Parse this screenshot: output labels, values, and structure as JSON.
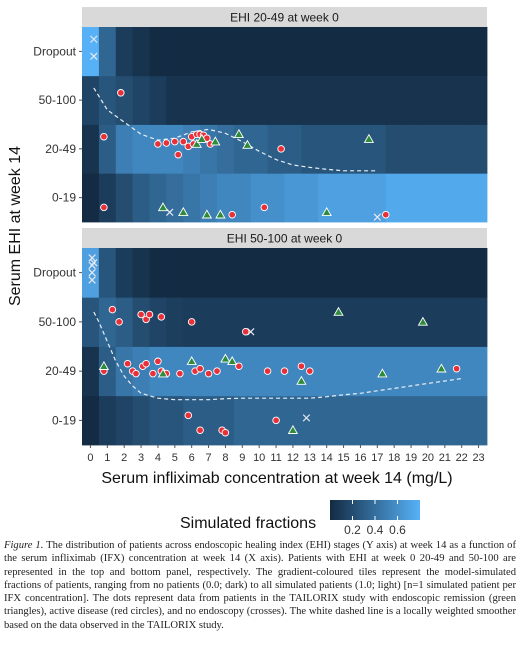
{
  "chart_data": {
    "type": "heatmap",
    "panels": [
      {
        "title": "EHI 20-49 at week 0",
        "tiles": {
          "0-19": [
            0.0,
            0.1,
            0.2,
            0.3,
            0.35,
            0.4,
            0.45,
            0.5,
            0.55,
            0.55,
            0.6,
            0.6,
            0.65,
            0.65,
            0.7,
            0.7,
            0.7,
            0.7,
            0.75,
            0.75,
            0.75,
            0.75,
            0.75,
            0.75
          ],
          "20-49": [
            0.05,
            0.3,
            0.5,
            0.55,
            0.55,
            0.55,
            0.5,
            0.45,
            0.4,
            0.35,
            0.35,
            0.3,
            0.3,
            0.25,
            0.25,
            0.25,
            0.25,
            0.25,
            0.2,
            0.2,
            0.2,
            0.2,
            0.2,
            0.2
          ],
          "50-100": [
            0.15,
            0.25,
            0.2,
            0.15,
            0.1,
            0.05,
            0.05,
            0.05,
            0.05,
            0.05,
            0.05,
            0.05,
            0.05,
            0.05,
            0.05,
            0.05,
            0.05,
            0.05,
            0.05,
            0.05,
            0.05,
            0.05,
            0.05,
            0.05
          ],
          "Dropout": [
            0.8,
            0.35,
            0.1,
            0.05,
            0.0,
            0.0,
            0.0,
            0.0,
            0.0,
            0.0,
            0.0,
            0.0,
            0.0,
            0.0,
            0.0,
            0.0,
            0.0,
            0.0,
            0.0,
            0.0,
            0.0,
            0.0,
            0.0,
            0.0
          ]
        },
        "remission": [
          [
            4.3,
            "0-19",
            -0.2
          ],
          [
            5.5,
            "0-19",
            -0.3
          ],
          [
            6.3,
            "20-49",
            0.1
          ],
          [
            6.6,
            "20-49",
            0.2
          ],
          [
            6.9,
            "0-19",
            -0.35
          ],
          [
            7.4,
            "20-49",
            0.15
          ],
          [
            7.7,
            "0-19",
            -0.35
          ],
          [
            8.8,
            "20-49",
            0.3
          ],
          [
            9.3,
            "20-49",
            0.08
          ],
          [
            14.0,
            "0-19",
            -0.3
          ],
          [
            16.5,
            "20-49",
            0.2
          ]
        ],
        "active": [
          [
            0.8,
            "0-19",
            -0.2
          ],
          [
            0.8,
            "20-49",
            0.25
          ],
          [
            1.8,
            "50-100",
            0.15
          ],
          [
            4.0,
            "20-49",
            0.1
          ],
          [
            4.5,
            "20-49",
            0.12
          ],
          [
            5.0,
            "20-49",
            0.15
          ],
          [
            5.2,
            "20-49",
            -0.12
          ],
          [
            5.5,
            "20-49",
            0.15
          ],
          [
            5.8,
            "20-49",
            0.05
          ],
          [
            6.0,
            "20-49",
            0.25
          ],
          [
            6.1,
            "20-49",
            0.1
          ],
          [
            6.3,
            "20-49",
            0.3
          ],
          [
            6.5,
            "20-49",
            0.3
          ],
          [
            6.7,
            "20-49",
            0.28
          ],
          [
            6.9,
            "20-49",
            0.22
          ],
          [
            7.1,
            "20-49",
            0.1
          ],
          [
            8.4,
            "0-19",
            -0.35
          ],
          [
            10.3,
            "0-19",
            -0.2
          ],
          [
            11.3,
            "20-49",
            0.0
          ],
          [
            17.5,
            "0-19",
            -0.35
          ]
        ],
        "no_endoscopy": [
          [
            0.2,
            "Dropout",
            0.25
          ],
          [
            0.2,
            "Dropout",
            -0.1
          ],
          [
            4.7,
            "0-19",
            -0.3
          ],
          [
            17.0,
            "0-19",
            -0.4
          ]
        ],
        "smoother": [
          [
            0.2,
            0.25
          ],
          [
            1.0,
            -0.2
          ],
          [
            2.0,
            -0.45
          ],
          [
            3.0,
            -0.7
          ],
          [
            4.0,
            -0.82
          ],
          [
            5.0,
            -0.78
          ],
          [
            6.0,
            -0.65
          ],
          [
            7.0,
            -0.6
          ],
          [
            8.0,
            -0.68
          ],
          [
            9.0,
            -0.85
          ],
          [
            10.0,
            -1.05
          ],
          [
            11.0,
            -1.22
          ],
          [
            12.0,
            -1.33
          ],
          [
            13.0,
            -1.38
          ],
          [
            14.0,
            -1.42
          ],
          [
            15.0,
            -1.45
          ],
          [
            16.0,
            -1.45
          ],
          [
            17.0,
            -1.45
          ]
        ]
      },
      {
        "title": "EHI 50-100 at week 0",
        "tiles": {
          "0-19": [
            0.0,
            0.1,
            0.15,
            0.2,
            0.25,
            0.25,
            0.3,
            0.3,
            0.3,
            0.35,
            0.35,
            0.35,
            0.35,
            0.35,
            0.35,
            0.35,
            0.35,
            0.35,
            0.35,
            0.35,
            0.35,
            0.35,
            0.35,
            0.35
          ],
          "20-49": [
            0.05,
            0.3,
            0.45,
            0.5,
            0.55,
            0.55,
            0.55,
            0.55,
            0.55,
            0.55,
            0.55,
            0.55,
            0.55,
            0.55,
            0.55,
            0.55,
            0.55,
            0.55,
            0.55,
            0.55,
            0.55,
            0.55,
            0.55,
            0.55
          ],
          "50-100": [
            0.25,
            0.35,
            0.3,
            0.2,
            0.15,
            0.12,
            0.1,
            0.1,
            0.1,
            0.1,
            0.1,
            0.1,
            0.1,
            0.1,
            0.1,
            0.1,
            0.1,
            0.1,
            0.1,
            0.1,
            0.1,
            0.1,
            0.1,
            0.1
          ],
          "Dropout": [
            0.7,
            0.25,
            0.1,
            0.05,
            0.0,
            0.0,
            0.0,
            0.0,
            0.0,
            0.0,
            0.0,
            0.0,
            0.0,
            0.0,
            0.0,
            0.0,
            0.0,
            0.0,
            0.0,
            0.0,
            0.0,
            0.0,
            0.0,
            0.0
          ]
        },
        "remission": [
          [
            0.8,
            "20-49",
            0.1
          ],
          [
            4.3,
            "20-49",
            -0.05
          ],
          [
            6.0,
            "20-49",
            0.2
          ],
          [
            8.0,
            "20-49",
            0.25
          ],
          [
            8.4,
            "20-49",
            0.2
          ],
          [
            12.0,
            "0-19",
            -0.2
          ],
          [
            12.5,
            "20-49",
            -0.2
          ],
          [
            14.7,
            "50-100",
            0.2
          ],
          [
            17.3,
            "20-49",
            -0.05
          ],
          [
            19.7,
            "50-100",
            0.0
          ],
          [
            20.8,
            "20-49",
            0.05
          ]
        ],
        "active": [
          [
            0.8,
            "20-49",
            0.0
          ],
          [
            1.3,
            "50-100",
            0.25
          ],
          [
            1.7,
            "50-100",
            0.0
          ],
          [
            2.2,
            "20-49",
            0.15
          ],
          [
            2.5,
            "20-49",
            0.0
          ],
          [
            2.7,
            "20-49",
            -0.05
          ],
          [
            3.0,
            "50-100",
            0.15
          ],
          [
            3.1,
            "20-49",
            0.1
          ],
          [
            3.3,
            "20-49",
            0.15
          ],
          [
            3.3,
            "50-100",
            0.05
          ],
          [
            3.5,
            "50-100",
            0.15
          ],
          [
            3.7,
            "20-49",
            -0.05
          ],
          [
            4.0,
            "20-49",
            0.2
          ],
          [
            4.2,
            "50-100",
            0.1
          ],
          [
            4.2,
            "20-49",
            0.0
          ],
          [
            4.5,
            "20-49",
            -0.05
          ],
          [
            5.3,
            "20-49",
            -0.05
          ],
          [
            5.8,
            "0-19",
            0.1
          ],
          [
            6.0,
            "50-100",
            0.0
          ],
          [
            6.2,
            "20-49",
            0.0
          ],
          [
            6.5,
            "0-19",
            -0.2
          ],
          [
            6.5,
            "20-49",
            0.05
          ],
          [
            7.0,
            "20-49",
            -0.05
          ],
          [
            7.5,
            "20-49",
            0.0
          ],
          [
            7.8,
            "0-19",
            -0.2
          ],
          [
            8.0,
            "0-19",
            -0.25
          ],
          [
            8.8,
            "20-49",
            0.1
          ],
          [
            9.2,
            "50-100",
            -0.2
          ],
          [
            10.5,
            "20-49",
            0.0
          ],
          [
            11.0,
            "0-19",
            0.0
          ],
          [
            11.5,
            "20-49",
            0.0
          ],
          [
            12.5,
            "20-49",
            0.1
          ],
          [
            13.0,
            "20-49",
            0.0
          ],
          [
            21.7,
            "20-49",
            0.05
          ]
        ],
        "no_endoscopy": [
          [
            0.1,
            "Dropout",
            0.3
          ],
          [
            0.1,
            "Dropout",
            0.15
          ],
          [
            0.1,
            "Dropout",
            0.0
          ],
          [
            0.1,
            "Dropout",
            -0.15
          ],
          [
            0.2,
            "Dropout",
            0.2
          ],
          [
            9.5,
            "50-100",
            -0.2
          ],
          [
            12.8,
            "0-19",
            0.05
          ]
        ],
        "smoother": [
          [
            0.2,
            0.2
          ],
          [
            0.5,
            0.0
          ],
          [
            1.0,
            -0.4
          ],
          [
            1.5,
            -0.8
          ],
          [
            2.0,
            -1.1
          ],
          [
            2.5,
            -1.3
          ],
          [
            3.0,
            -1.45
          ],
          [
            4.0,
            -1.55
          ],
          [
            5.0,
            -1.58
          ],
          [
            6.0,
            -1.58
          ],
          [
            7.0,
            -1.58
          ],
          [
            8.0,
            -1.56
          ],
          [
            9.0,
            -1.55
          ],
          [
            10.0,
            -1.55
          ],
          [
            11.0,
            -1.55
          ],
          [
            12.0,
            -1.55
          ],
          [
            13.0,
            -1.55
          ],
          [
            14.0,
            -1.52
          ],
          [
            15.0,
            -1.48
          ],
          [
            16.0,
            -1.45
          ],
          [
            17.0,
            -1.4
          ],
          [
            18.0,
            -1.35
          ],
          [
            19.0,
            -1.3
          ],
          [
            20.0,
            -1.25
          ],
          [
            21.0,
            -1.2
          ],
          [
            22.0,
            -1.15
          ]
        ]
      }
    ],
    "y_categories": [
      "0-19",
      "20-49",
      "50-100",
      "Dropout"
    ],
    "x_ticks": [
      0,
      1,
      2,
      3,
      4,
      5,
      6,
      7,
      8,
      9,
      10,
      11,
      12,
      13,
      14,
      15,
      16,
      17,
      18,
      19,
      20,
      21,
      22,
      23
    ],
    "xlim": [
      -0.5,
      23.5
    ],
    "xlabel": "Serum infliximab concentration at week 14 (mg/L)",
    "ylabel": "Serum EHI at week 14",
    "legend": {
      "title": "Simulated fractions",
      "tick_labels": [
        "0.2",
        "0.4",
        "0.6"
      ],
      "ticks": [
        0.2,
        0.4,
        0.6
      ],
      "range": [
        0,
        0.8
      ],
      "placement": "bottom-center"
    },
    "grid": true,
    "colors": {
      "panel_bg": "#ebebeb",
      "strip_bg": "#d9d9d9",
      "low_color": "#132b43",
      "high_color": "#56b1f7",
      "remission_fill": "#2e8b3a",
      "active_fill": "#e8303a",
      "no_endoscopy": "#e6e9f2",
      "smoother": "#e8eef6"
    }
  },
  "caption": {
    "label": "Figure 1.",
    "text": "The distribution of patients across endoscopic healing index (EHI) stages (Y axis) at week 14 as a function of the serum infliximab (IFX) concentration at week 14 (X axis). Patients with EHI at week 0 20-49 and 50-100 are represented in the top and bottom panel, respectively. The gradient-coloured tiles represent the model-simulated fractions of patients, ranging from no patients (0.0; dark) to all simulated patients (1.0; light) [n=1 simulated patient per IFX concentration]. The dots represent data from patients in the TAILORIX study with endoscopic remission (green triangles), active disease (red circles), and no endoscopy (crosses). The white dashed line is a locally weighted smoother based on the data observed in the TAILORIX study."
  }
}
